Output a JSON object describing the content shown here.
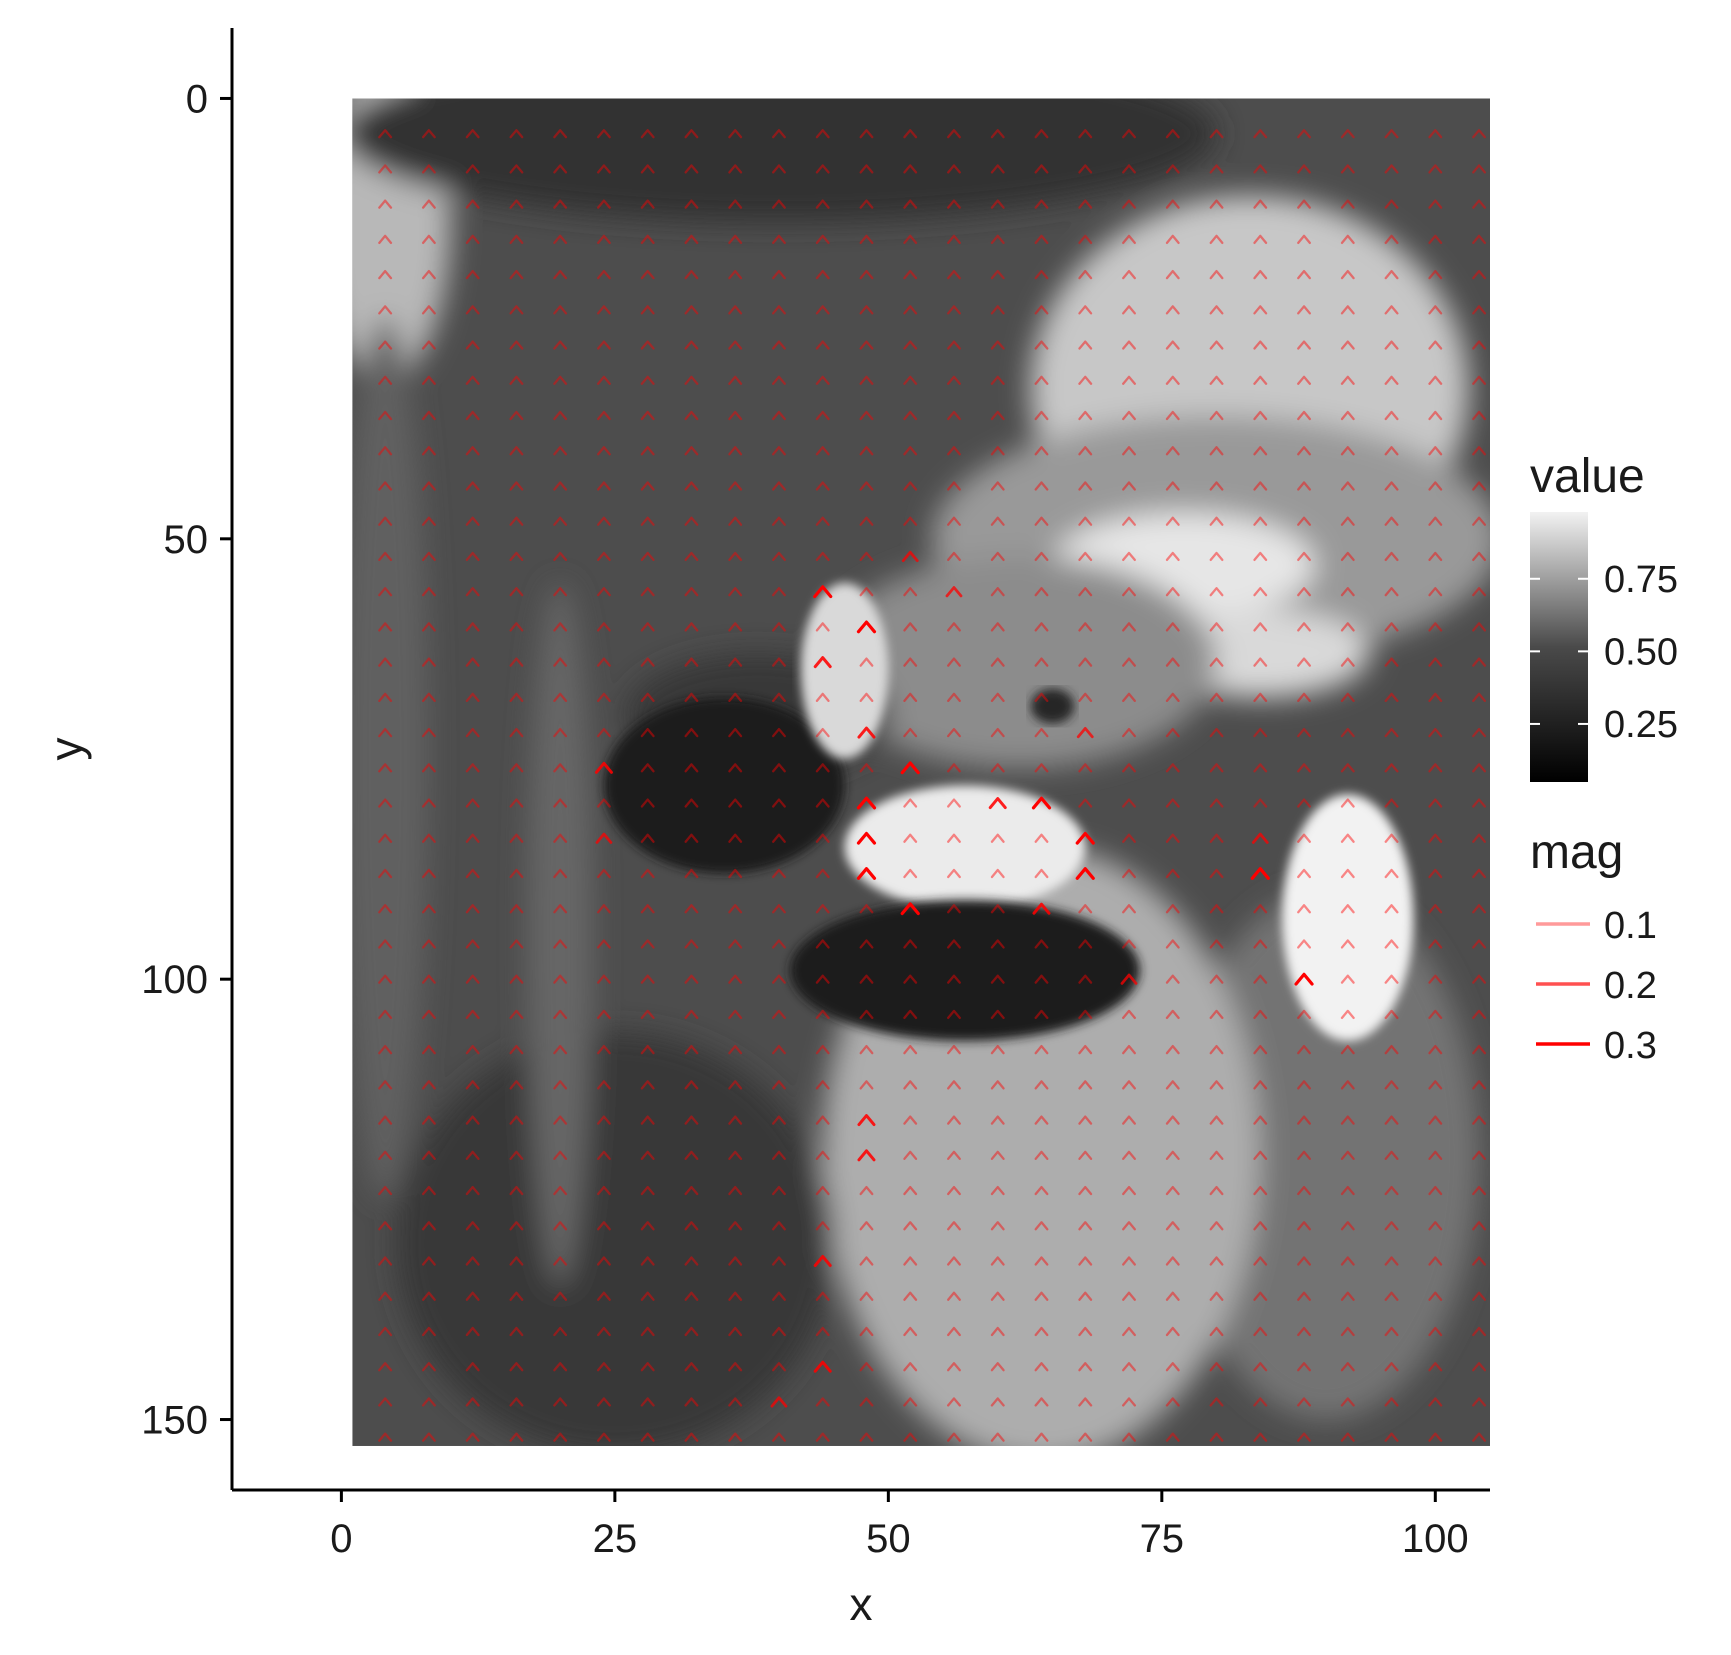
{
  "chart_data": {
    "type": "heatmap",
    "description_layers": [
      "raster",
      "vector-field"
    ],
    "xlabel": "x",
    "ylabel": "y",
    "xlim": [
      -10,
      105
    ],
    "ylim": [
      158,
      -8
    ],
    "y_reversed": true,
    "x_ticks": [
      0,
      25,
      50,
      75,
      100
    ],
    "x_tick_labels": [
      "0",
      "25",
      "50",
      "75",
      "100"
    ],
    "y_ticks": [
      0,
      50,
      100,
      150
    ],
    "y_tick_labels": [
      "0",
      "50",
      "100",
      "150"
    ],
    "raster_extent": {
      "x": [
        1,
        105
      ],
      "y": [
        0,
        153
      ]
    },
    "raster": {
      "description": "grayscale parrot (macaw) image; regions approximated as ellipses in data units",
      "background_value": 0.3,
      "regions": [
        {
          "name": "left-top-highlight",
          "cx": 4,
          "cy": 14,
          "rx": 6,
          "ry": 18,
          "value": 0.72
        },
        {
          "name": "left-vertical-band",
          "cx": 4,
          "cy": 75,
          "rx": 4,
          "ry": 50,
          "value": 0.38
        },
        {
          "name": "top-dark-band",
          "cx": 40,
          "cy": 4,
          "rx": 40,
          "ry": 10,
          "value": 0.2
        },
        {
          "name": "upper-right-bright",
          "cx": 83,
          "cy": 33,
          "rx": 20,
          "ry": 22,
          "value": 0.78
        },
        {
          "name": "upper-right-glow",
          "cx": 80,
          "cy": 50,
          "rx": 26,
          "ry": 14,
          "value": 0.6
        },
        {
          "name": "bright-leaf-1",
          "cx": 77,
          "cy": 53,
          "rx": 12,
          "ry": 6,
          "value": 0.9
        },
        {
          "name": "bright-leaf-2",
          "cx": 84,
          "cy": 63,
          "rx": 10,
          "ry": 5,
          "value": 0.85
        },
        {
          "name": "bright-wing-streak",
          "cx": 92,
          "cy": 93,
          "rx": 6,
          "ry": 14,
          "value": 0.95
        },
        {
          "name": "wing-mid-gray",
          "cx": 90,
          "cy": 120,
          "rx": 14,
          "ry": 30,
          "value": 0.45
        },
        {
          "name": "body-gray",
          "cx": 64,
          "cy": 120,
          "rx": 20,
          "ry": 35,
          "value": 0.68
        },
        {
          "name": "head-crown",
          "cx": 62,
          "cy": 64,
          "rx": 18,
          "ry": 12,
          "value": 0.55
        },
        {
          "name": "beak-dark",
          "cx": 35,
          "cy": 78,
          "rx": 11,
          "ry": 10,
          "value": 0.1
        },
        {
          "name": "beak-upper",
          "cx": 38,
          "cy": 70,
          "rx": 12,
          "ry": 7,
          "value": 0.22
        },
        {
          "name": "cheek-white",
          "cx": 57,
          "cy": 85,
          "rx": 11,
          "ry": 7,
          "value": 0.92
        },
        {
          "name": "face-white-strip",
          "cx": 46,
          "cy": 65,
          "rx": 4,
          "ry": 10,
          "value": 0.85
        },
        {
          "name": "neck-dark",
          "cx": 57,
          "cy": 99,
          "rx": 16,
          "ry": 8,
          "value": 0.12
        },
        {
          "name": "eye",
          "cx": 65,
          "cy": 69,
          "rx": 2,
          "ry": 2,
          "value": 0.15
        },
        {
          "name": "lower-left-dark",
          "cx": 25,
          "cy": 130,
          "rx": 20,
          "ry": 24,
          "value": 0.22
        },
        {
          "name": "curved-arc-band",
          "cx": 20,
          "cy": 95,
          "rx": 3,
          "ry": 40,
          "value": 0.4
        }
      ]
    },
    "vector_field": {
      "color": "#ff0000",
      "grid_x": {
        "start": 4,
        "end": 104,
        "step": 4
      },
      "grid_y": {
        "start": 4,
        "end": 152,
        "step": 4
      },
      "strong_points": [
        {
          "x": 44,
          "y": 56,
          "mag": 0.3
        },
        {
          "x": 48,
          "y": 60,
          "mag": 0.3
        },
        {
          "x": 44,
          "y": 64,
          "mag": 0.25
        },
        {
          "x": 48,
          "y": 72,
          "mag": 0.25
        },
        {
          "x": 52,
          "y": 76,
          "mag": 0.3
        },
        {
          "x": 48,
          "y": 80,
          "mag": 0.3
        },
        {
          "x": 48,
          "y": 84,
          "mag": 0.3
        },
        {
          "x": 48,
          "y": 88,
          "mag": 0.3
        },
        {
          "x": 52,
          "y": 92,
          "mag": 0.3
        },
        {
          "x": 64,
          "y": 80,
          "mag": 0.3
        },
        {
          "x": 68,
          "y": 84,
          "mag": 0.3
        },
        {
          "x": 68,
          "y": 88,
          "mag": 0.3
        },
        {
          "x": 64,
          "y": 92,
          "mag": 0.25
        },
        {
          "x": 60,
          "y": 80,
          "mag": 0.25
        },
        {
          "x": 24,
          "y": 76,
          "mag": 0.25
        },
        {
          "x": 24,
          "y": 84,
          "mag": 0.2
        },
        {
          "x": 84,
          "y": 88,
          "mag": 0.3
        },
        {
          "x": 88,
          "y": 100,
          "mag": 0.3
        },
        {
          "x": 84,
          "y": 84,
          "mag": 0.2
        },
        {
          "x": 48,
          "y": 116,
          "mag": 0.25
        },
        {
          "x": 48,
          "y": 120,
          "mag": 0.25
        },
        {
          "x": 44,
          "y": 132,
          "mag": 0.25
        },
        {
          "x": 44,
          "y": 144,
          "mag": 0.25
        },
        {
          "x": 40,
          "y": 148,
          "mag": 0.2
        },
        {
          "x": 56,
          "y": 56,
          "mag": 0.2
        },
        {
          "x": 52,
          "y": 52,
          "mag": 0.2
        },
        {
          "x": 68,
          "y": 72,
          "mag": 0.2
        },
        {
          "x": 72,
          "y": 100,
          "mag": 0.2
        }
      ],
      "default_mag": 0.08
    },
    "legend": [
      {
        "title": "value",
        "type": "colorbar",
        "breaks": [
          0.25,
          0.5,
          0.75
        ],
        "labels": [
          "0.25",
          "0.50",
          "0.75"
        ],
        "range": [
          0.05,
          0.98
        ],
        "colors": [
          "#000000",
          "#ffffff"
        ]
      },
      {
        "title": "mag",
        "type": "lines",
        "labels": [
          "0.1",
          "0.2",
          "0.3"
        ],
        "colors": [
          "#ff9a9a",
          "#ff5050",
          "#ff0000"
        ],
        "values": [
          0.1,
          0.2,
          0.3
        ]
      }
    ],
    "legend_position": "right",
    "grid": false
  }
}
